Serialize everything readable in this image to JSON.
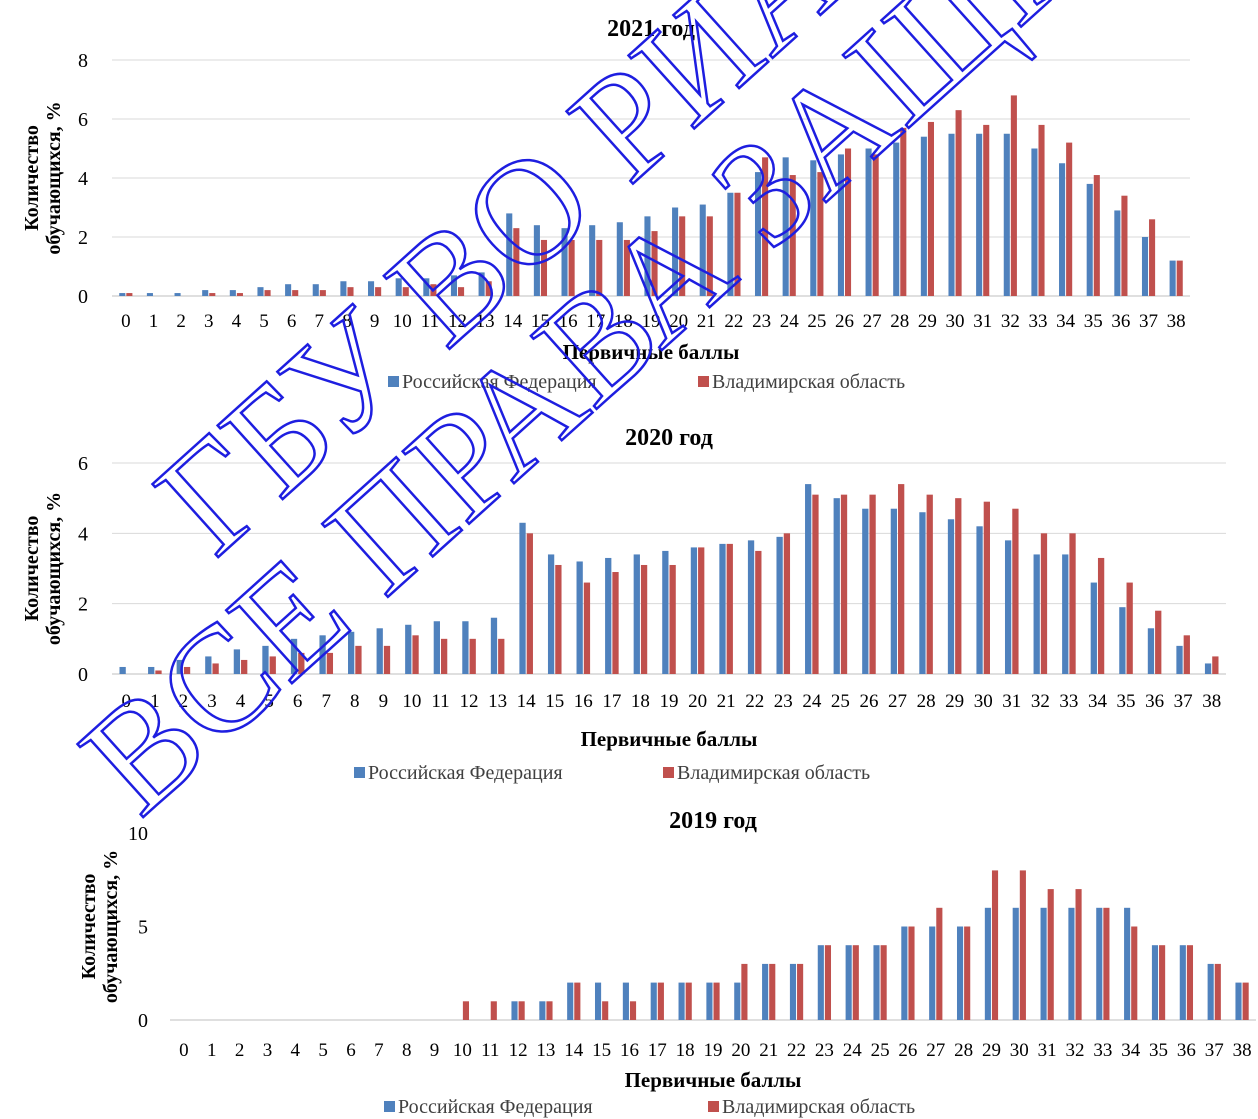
{
  "colors": {
    "rf": "#4F81BD",
    "vlad": "#C0504D",
    "grid": "#D9D9D9",
    "axis": "#BFBFBF",
    "text": "#000000",
    "watermark_fill": "#1E1EE0"
  },
  "watermark": {
    "line1": "ГБУ ВО РИАЦ",
    "line2": "ВСЕ ПРАВА ЗАЩИЩЕНЫ"
  },
  "chart_data": [
    {
      "type": "bar",
      "title": "2021 год",
      "xlabel": "Первичные баллы",
      "ylabel": "Количество обучающихся, %",
      "ylim": [
        0,
        8
      ],
      "yticks": [
        0,
        2,
        4,
        6,
        8
      ],
      "legend_position": "bottom",
      "grid": true,
      "categories": [
        "0",
        "1",
        "2",
        "3",
        "4",
        "5",
        "6",
        "7",
        "8",
        "9",
        "10",
        "11",
        "12",
        "13",
        "14",
        "15",
        "16",
        "17",
        "18",
        "19",
        "20",
        "21",
        "22",
        "23",
        "24",
        "25",
        "26",
        "27",
        "28",
        "29",
        "30",
        "31",
        "32",
        "33",
        "34",
        "35",
        "36",
        "37",
        "38"
      ],
      "series": [
        {
          "name": "Российская Федерация",
          "values": [
            0.1,
            0.1,
            0.1,
            0.2,
            0.2,
            0.3,
            0.4,
            0.4,
            0.5,
            0.5,
            0.6,
            0.6,
            0.7,
            0.8,
            2.8,
            2.4,
            2.3,
            2.4,
            2.5,
            2.7,
            3.0,
            3.1,
            3.5,
            4.2,
            4.7,
            4.6,
            4.8,
            5.0,
            5.2,
            5.4,
            5.5,
            5.5,
            5.5,
            5.0,
            4.5,
            3.8,
            2.9,
            2.0,
            1.2
          ]
        },
        {
          "name": "Владимирская область",
          "values": [
            0.1,
            0.0,
            0.0,
            0.1,
            0.1,
            0.2,
            0.2,
            0.2,
            0.3,
            0.3,
            0.3,
            0.4,
            0.3,
            0.5,
            2.3,
            1.9,
            1.9,
            1.9,
            1.9,
            2.2,
            2.7,
            2.7,
            3.5,
            4.7,
            4.1,
            4.2,
            5.0,
            4.8,
            5.7,
            5.9,
            6.3,
            5.8,
            6.8,
            5.8,
            5.2,
            4.1,
            3.4,
            2.6,
            1.2
          ]
        }
      ]
    },
    {
      "type": "bar",
      "title": "2020 год",
      "xlabel": "Первичные баллы",
      "ylabel": "Количество обучающихся, %",
      "ylim": [
        0,
        6
      ],
      "yticks": [
        0,
        2,
        4,
        6
      ],
      "legend_position": "bottom",
      "grid": true,
      "categories": [
        "0",
        "1",
        "2",
        "3",
        "4",
        "5",
        "6",
        "7",
        "8",
        "9",
        "10",
        "11",
        "12",
        "13",
        "14",
        "15",
        "16",
        "17",
        "18",
        "19",
        "20",
        "21",
        "22",
        "23",
        "24",
        "25",
        "26",
        "27",
        "28",
        "29",
        "30",
        "31",
        "32",
        "33",
        "34",
        "35",
        "36",
        "37",
        "38"
      ],
      "series": [
        {
          "name": "Российская Федерация",
          "values": [
            0.2,
            0.2,
            0.4,
            0.5,
            0.7,
            0.8,
            1.0,
            1.1,
            1.2,
            1.3,
            1.4,
            1.5,
            1.5,
            1.6,
            4.3,
            3.4,
            3.2,
            3.3,
            3.4,
            3.5,
            3.6,
            3.7,
            3.8,
            3.9,
            5.4,
            5.0,
            4.7,
            4.7,
            4.6,
            4.4,
            4.2,
            3.8,
            3.4,
            3.4,
            2.6,
            1.9,
            1.3,
            0.8,
            0.3
          ]
        },
        {
          "name": "Владимирская область",
          "values": [
            0.0,
            0.1,
            0.2,
            0.3,
            0.4,
            0.5,
            0.6,
            0.6,
            0.8,
            0.8,
            1.1,
            1.0,
            1.0,
            1.0,
            4.0,
            3.1,
            2.6,
            2.9,
            3.1,
            3.1,
            3.6,
            3.7,
            3.5,
            4.0,
            5.1,
            5.1,
            5.1,
            5.4,
            5.1,
            5.0,
            4.9,
            4.7,
            4.0,
            4.0,
            3.3,
            2.6,
            1.8,
            1.1,
            0.5
          ]
        }
      ]
    },
    {
      "type": "bar",
      "title": "2019 год",
      "xlabel": "Первичные баллы",
      "ylabel": "Количество обучающихся, %",
      "ylim": [
        0,
        10
      ],
      "yticks": [
        0,
        5,
        10
      ],
      "legend_position": "bottom",
      "grid": false,
      "categories": [
        "0",
        "1",
        "2",
        "3",
        "4",
        "5",
        "6",
        "7",
        "8",
        "9",
        "10",
        "11",
        "12",
        "13",
        "14",
        "15",
        "16",
        "17",
        "18",
        "19",
        "20",
        "21",
        "22",
        "23",
        "24",
        "25",
        "26",
        "27",
        "28",
        "29",
        "30",
        "31",
        "32",
        "33",
        "34",
        "35",
        "36",
        "37",
        "38"
      ],
      "series": [
        {
          "name": "Российская Федерация",
          "values": [
            0,
            0,
            0,
            0,
            0,
            0,
            0,
            0,
            0,
            0,
            0,
            0,
            1,
            1,
            2,
            2,
            2,
            2,
            2,
            2,
            2,
            3,
            3,
            4,
            4,
            4,
            5,
            5,
            5,
            6,
            6,
            6,
            6,
            6,
            6,
            4,
            4,
            3,
            2
          ]
        },
        {
          "name": "Владимирская область",
          "values": [
            0,
            0,
            0,
            0,
            0,
            0,
            0,
            0,
            0,
            0,
            1,
            1,
            1,
            1,
            2,
            1,
            1,
            2,
            2,
            2,
            3,
            3,
            3,
            4,
            4,
            4,
            5,
            6,
            5,
            8,
            8,
            7,
            7,
            6,
            5,
            4,
            4,
            3,
            2
          ]
        }
      ]
    }
  ]
}
